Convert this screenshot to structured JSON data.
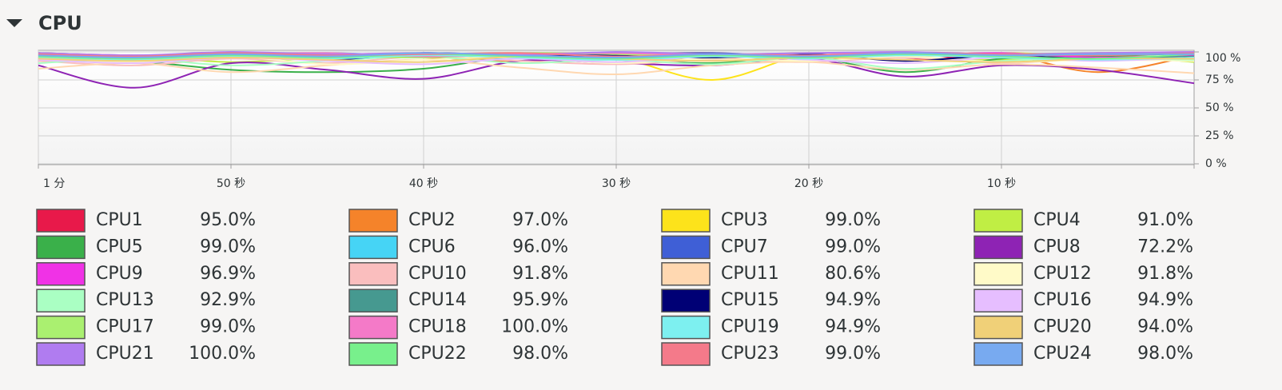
{
  "chart_data": {
    "type": "line",
    "title": "CPU",
    "x": [
      60,
      55,
      50,
      45,
      40,
      35,
      30,
      25,
      20,
      15,
      10,
      5,
      0
    ],
    "xlim": [
      60,
      0
    ],
    "xticks": [
      {
        "value": 60,
        "label": "1 分"
      },
      {
        "value": 50,
        "label": "50 秒"
      },
      {
        "value": 40,
        "label": "40 秒"
      },
      {
        "value": 30,
        "label": "30 秒"
      },
      {
        "value": 20,
        "label": "20 秒"
      },
      {
        "value": 10,
        "label": "10 秒"
      }
    ],
    "ylim": [
      0,
      100
    ],
    "yticks": [
      {
        "value": 100,
        "label": "100 %"
      },
      {
        "value": 75,
        "label": "75 %"
      },
      {
        "value": 50,
        "label": "50 %"
      },
      {
        "value": 25,
        "label": "25 %"
      },
      {
        "value": 0,
        "label": "0 %"
      }
    ],
    "grid": true,
    "series": [
      {
        "name": "CPU1",
        "usage": "95.0%",
        "color": "#e8194a",
        "values": [
          95,
          92,
          97,
          94,
          98,
          96,
          99,
          95,
          97,
          93,
          98,
          96,
          95
        ]
      },
      {
        "name": "CPU2",
        "usage": "97.0%",
        "color": "#f5832a",
        "values": [
          97,
          94,
          96,
          98,
          95,
          92,
          97,
          99,
          94,
          96,
          98,
          82,
          97
        ]
      },
      {
        "name": "CPU3",
        "usage": "99.0%",
        "color": "#fde31b",
        "values": [
          99,
          96,
          98,
          94,
          97,
          99,
          95,
          75,
          98,
          96,
          99,
          97,
          99
        ]
      },
      {
        "name": "CPU4",
        "usage": "91.0%",
        "color": "#c0ee44",
        "values": [
          93,
          96,
          91,
          95,
          98,
          94,
          97,
          92,
          96,
          95,
          93,
          97,
          91
        ]
      },
      {
        "name": "CPU5",
        "usage": "99.0%",
        "color": "#3ab04a",
        "values": [
          96,
          92,
          84,
          82,
          85,
          96,
          93,
          90,
          95,
          82,
          94,
          96,
          99
        ]
      },
      {
        "name": "CPU6",
        "usage": "96.0%",
        "color": "#46d4f5",
        "values": [
          98,
          95,
          97,
          99,
          96,
          94,
          98,
          97,
          95,
          99,
          96,
          94,
          96
        ]
      },
      {
        "name": "CPU7",
        "usage": "99.0%",
        "color": "#3f5fd6",
        "values": [
          99,
          97,
          98,
          96,
          99,
          97,
          98,
          99,
          96,
          98,
          97,
          99,
          99
        ]
      },
      {
        "name": "CPU8",
        "usage": "72.2%",
        "color": "#8e23b4",
        "values": [
          88,
          68,
          90,
          84,
          76,
          92,
          90,
          88,
          94,
          78,
          88,
          84,
          72
        ]
      },
      {
        "name": "CPU9",
        "usage": "96.9%",
        "color": "#f032e6",
        "values": [
          97,
          95,
          98,
          96,
          99,
          97,
          95,
          98,
          96,
          97,
          99,
          95,
          97
        ]
      },
      {
        "name": "CPU10",
        "usage": "91.8%",
        "color": "#fabebe",
        "values": [
          92,
          88,
          94,
          90,
          96,
          92,
          89,
          93,
          91,
          95,
          90,
          94,
          92
        ]
      },
      {
        "name": "CPU11",
        "usage": "80.6%",
        "color": "#ffd8b1",
        "values": [
          85,
          90,
          82,
          88,
          93,
          86,
          80,
          88,
          91,
          84,
          89,
          86,
          81
        ]
      },
      {
        "name": "CPU12",
        "usage": "91.8%",
        "color": "#fffac8",
        "values": [
          94,
          91,
          96,
          89,
          93,
          95,
          90,
          94,
          92,
          96,
          91,
          93,
          92
        ]
      },
      {
        "name": "CPU13",
        "usage": "92.9%",
        "color": "#aaffc3",
        "values": [
          90,
          94,
          88,
          92,
          96,
          90,
          93,
          89,
          95,
          85,
          92,
          94,
          93
        ]
      },
      {
        "name": "CPU14",
        "usage": "95.9%",
        "color": "#469990",
        "values": [
          96,
          94,
          97,
          95,
          98,
          96,
          94,
          97,
          95,
          98,
          96,
          94,
          96
        ]
      },
      {
        "name": "CPU15",
        "usage": "94.9%",
        "color": "#000075",
        "values": [
          97,
          95,
          98,
          93,
          99,
          96,
          97,
          95,
          98,
          92,
          97,
          93,
          95
        ]
      },
      {
        "name": "CPU16",
        "usage": "94.9%",
        "color": "#e6beff",
        "values": [
          93,
          90,
          95,
          92,
          89,
          94,
          91,
          96,
          93,
          90,
          95,
          92,
          95
        ]
      },
      {
        "name": "CPU17",
        "usage": "99.0%",
        "color": "#aaf070",
        "values": [
          98,
          96,
          99,
          97,
          95,
          99,
          98,
          96,
          99,
          97,
          98,
          99,
          99
        ]
      },
      {
        "name": "CPU18",
        "usage": "100.0%",
        "color": "#f47ac8",
        "values": [
          99,
          97,
          98,
          99,
          96,
          98,
          99,
          97,
          99,
          98,
          96,
          99,
          100
        ]
      },
      {
        "name": "CPU19",
        "usage": "94.9%",
        "color": "#7df0f0",
        "values": [
          95,
          93,
          96,
          94,
          97,
          95,
          93,
          96,
          94,
          97,
          95,
          93,
          95
        ]
      },
      {
        "name": "CPU20",
        "usage": "94.0%",
        "color": "#f0d078",
        "values": [
          94,
          92,
          95,
          93,
          91,
          96,
          94,
          92,
          95,
          93,
          91,
          94,
          94
        ]
      },
      {
        "name": "CPU21",
        "usage": "100.0%",
        "color": "#b07cf0",
        "values": [
          99,
          97,
          100,
          98,
          99,
          97,
          100,
          98,
          99,
          100,
          98,
          99,
          100
        ]
      },
      {
        "name": "CPU22",
        "usage": "98.0%",
        "color": "#78f08c",
        "values": [
          96,
          94,
          97,
          95,
          98,
          96,
          94,
          97,
          95,
          98,
          96,
          94,
          98
        ]
      },
      {
        "name": "CPU23",
        "usage": "99.0%",
        "color": "#f47a8a",
        "values": [
          98,
          96,
          99,
          97,
          98,
          99,
          96,
          98,
          97,
          99,
          98,
          97,
          99
        ]
      },
      {
        "name": "CPU24",
        "usage": "98.0%",
        "color": "#78aaf0",
        "values": [
          97,
          95,
          98,
          96,
          99,
          97,
          95,
          98,
          96,
          99,
          97,
          98,
          98
        ]
      }
    ]
  }
}
